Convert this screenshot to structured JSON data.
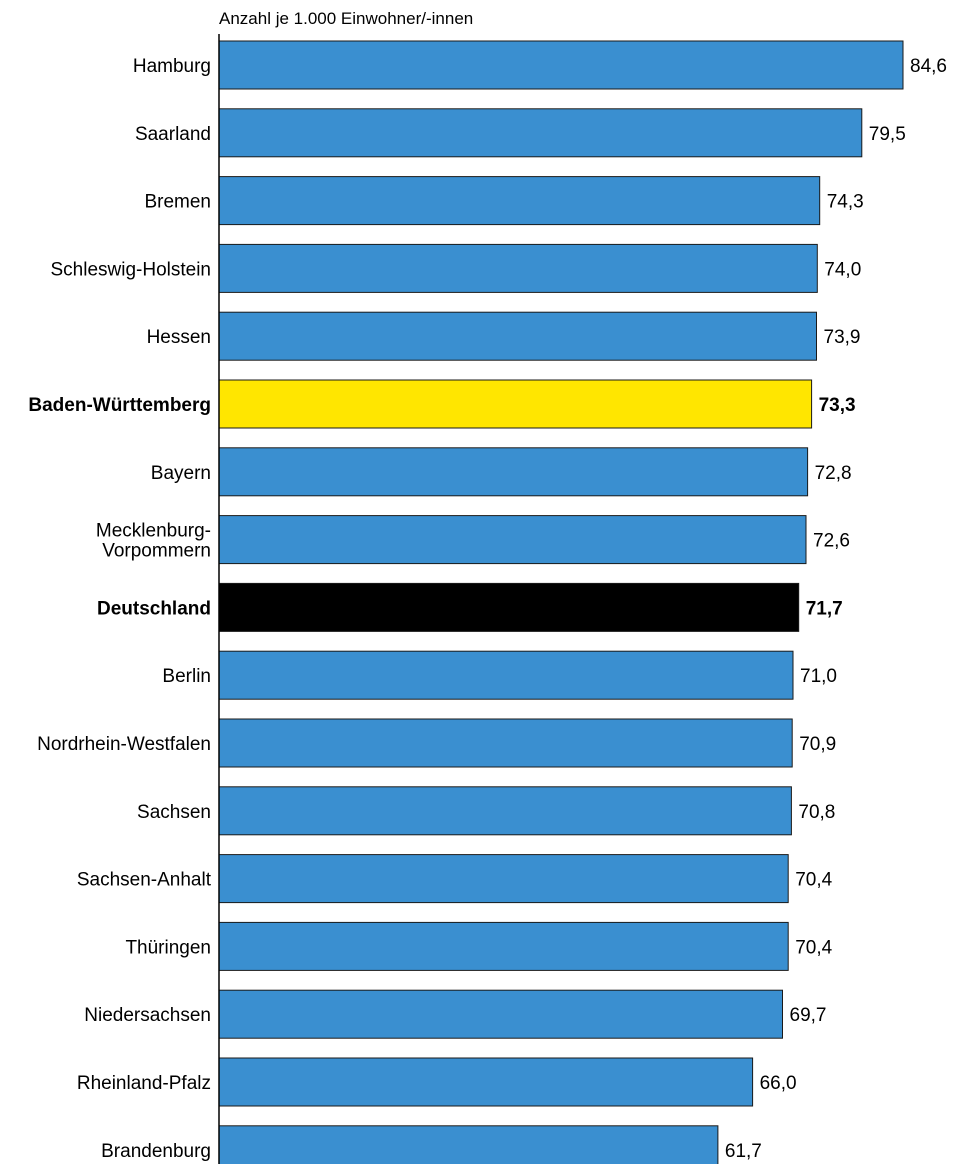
{
  "chart_data": {
    "type": "bar",
    "orientation": "horizontal",
    "unit_label": "Anzahl je 1.000 Einwohner/-innen",
    "xlim": [
      0,
      84.6
    ],
    "grid": false,
    "categories": [
      "Hamburg",
      "Saarland",
      "Bremen",
      "Schleswig-Holstein",
      "Hessen",
      "Baden-Württemberg",
      "Bayern",
      "Mecklenburg-Vorpommern",
      "Deutschland",
      "Berlin",
      "Nordrhein-Westfalen",
      "Sachsen",
      "Sachsen-Anhalt",
      "Thüringen",
      "Niedersachsen",
      "Rheinland-Pfalz",
      "Brandenburg"
    ],
    "category_lines": [
      [
        "Hamburg"
      ],
      [
        "Saarland"
      ],
      [
        "Bremen"
      ],
      [
        "Schleswig-Holstein"
      ],
      [
        "Hessen"
      ],
      [
        "Baden-Württemberg"
      ],
      [
        "Bayern"
      ],
      [
        "Mecklenburg-",
        "Vorpommern"
      ],
      [
        "Deutschland"
      ],
      [
        "Berlin"
      ],
      [
        "Nordrhein-Westfalen"
      ],
      [
        "Sachsen"
      ],
      [
        "Sachsen-Anhalt"
      ],
      [
        "Thüringen"
      ],
      [
        "Niedersachsen"
      ],
      [
        "Rheinland-Pfalz"
      ],
      [
        "Brandenburg"
      ]
    ],
    "values": [
      84.6,
      79.5,
      74.3,
      74.0,
      73.9,
      73.3,
      72.8,
      72.6,
      71.7,
      71.0,
      70.9,
      70.8,
      70.4,
      70.4,
      69.7,
      66.0,
      61.7
    ],
    "value_labels": [
      "84,6",
      "79,5",
      "74,3",
      "74,0",
      "73,9",
      "73,3",
      "72,8",
      "72,6",
      "71,7",
      "71,0",
      "70,9",
      "70,8",
      "70,4",
      "70,4",
      "69,7",
      "66,0",
      "61,7"
    ],
    "highlights": {
      "Baden-Württemberg": "#ffe600",
      "Deutschland": "#000000"
    },
    "bold_categories": [
      "Baden-Württemberg",
      "Deutschland"
    ]
  },
  "colors": {
    "bar": "#3a8fd0",
    "bar_outline": "#1a1a1a",
    "axis": "#000000"
  }
}
